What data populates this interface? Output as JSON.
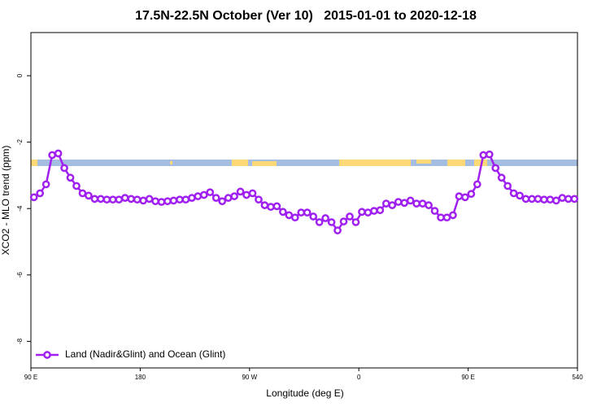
{
  "chart_data": {
    "type": "line",
    "title": "17.5N-22.5N October (Ver 10)   2015-01-01 to 2020-12-18",
    "x_label": "Longitude (deg E)",
    "y_label": "XCO2 - MLO trend (ppm)",
    "xlim": [
      90,
      540
    ],
    "xticks": [
      {
        "value": 90,
        "label": "90 E"
      },
      180,
      {
        "value": 270,
        "label": "90 W"
      },
      {
        "value": 360,
        "label": "0"
      },
      {
        "value": 450,
        "label": "90 E"
      },
      540
    ],
    "ylim": [
      -8.8,
      1.3
    ],
    "yticks": [
      0,
      -2,
      -4,
      -6,
      -8
    ],
    "legend": "lower left",
    "x": [
      92.5,
      97.5,
      102.5,
      107.5,
      112.5,
      117.5,
      122.5,
      127.5,
      132.5,
      137.5,
      142.5,
      147.5,
      152.5,
      157.5,
      162.5,
      167.5,
      172.5,
      177.5,
      182.5,
      187.5,
      192.5,
      197.5,
      202.5,
      207.5,
      212.5,
      217.5,
      222.5,
      227.5,
      232.5,
      237.5,
      242.5,
      247.5,
      252.5,
      257.5,
      262.5,
      267.5,
      272.5,
      277.5,
      282.5,
      287.5,
      292.5,
      297.5,
      302.5,
      307.5,
      312.5,
      317.5,
      322.5,
      327.5,
      332.5,
      337.5,
      342.5,
      347.5,
      352.5,
      357.5,
      362.5,
      367.5,
      372.5,
      377.5,
      382.5,
      387.5,
      392.5,
      397.5,
      402.5,
      407.5,
      412.5,
      417.5,
      422.5,
      427.5,
      432.5,
      437.5,
      442.5,
      447.5,
      452.5,
      457.5,
      462.5,
      467.5,
      472.5,
      477.5,
      482.5,
      487.5,
      492.5,
      497.5,
      502.5,
      507.5,
      512.5,
      517.5,
      522.5,
      527.5,
      532.5,
      537.5
    ],
    "series": [
      {
        "name": "Land (Nadir&Glint) and Ocean (Glint)",
        "color": "#a020f0",
        "values": [
          -3.66,
          -3.54,
          -3.27,
          -2.39,
          -2.34,
          -2.78,
          -3.07,
          -3.32,
          -3.54,
          -3.61,
          -3.71,
          -3.71,
          -3.73,
          -3.73,
          -3.73,
          -3.68,
          -3.71,
          -3.73,
          -3.76,
          -3.71,
          -3.78,
          -3.8,
          -3.78,
          -3.76,
          -3.73,
          -3.73,
          -3.68,
          -3.63,
          -3.59,
          -3.51,
          -3.68,
          -3.78,
          -3.68,
          -3.63,
          -3.49,
          -3.59,
          -3.54,
          -3.73,
          -3.9,
          -3.95,
          -3.93,
          -4.1,
          -4.2,
          -4.27,
          -4.12,
          -4.12,
          -4.24,
          -4.41,
          -4.29,
          -4.41,
          -4.66,
          -4.39,
          -4.24,
          -4.41,
          -4.1,
          -4.12,
          -4.07,
          -4.05,
          -3.85,
          -3.9,
          -3.8,
          -3.83,
          -3.76,
          -3.85,
          -3.85,
          -3.9,
          -4.07,
          -4.27,
          -4.27,
          -4.2,
          -3.63,
          -3.66,
          -3.56,
          -3.27,
          -2.39,
          -2.37,
          -2.78,
          -3.07,
          -3.32,
          -3.54,
          -3.61,
          -3.71,
          -3.71,
          -3.71,
          -3.73,
          -3.73,
          -3.76,
          -3.68,
          -3.71,
          -3.71
        ]
      }
    ]
  }
}
